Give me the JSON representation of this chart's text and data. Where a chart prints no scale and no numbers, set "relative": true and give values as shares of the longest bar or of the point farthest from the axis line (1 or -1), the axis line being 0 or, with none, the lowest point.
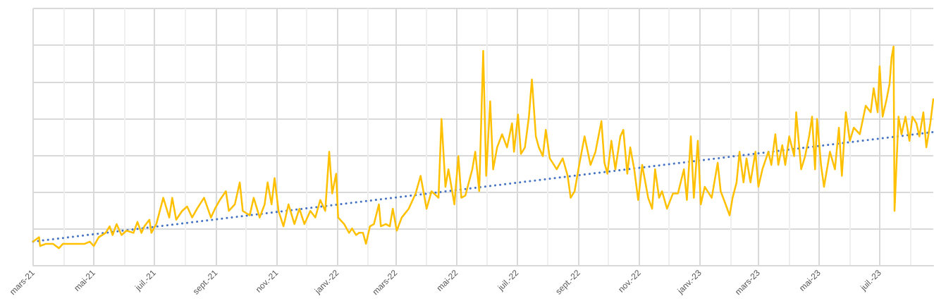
{
  "chart_data": {
    "type": "line",
    "relative": true,
    "grid": true,
    "marker": "none",
    "xlim": [
      "2021-03-01",
      "2023-08-24"
    ],
    "xticks": [
      {
        "value": "2021-03-01",
        "label": "mars-21"
      },
      {
        "value": "2021-04-01",
        "label": null
      },
      {
        "value": "2021-05-01",
        "label": "mai-21"
      },
      {
        "value": "2021-06-01",
        "label": null
      },
      {
        "value": "2021-07-01",
        "label": "juil.-21"
      },
      {
        "value": "2021-08-01",
        "label": null
      },
      {
        "value": "2021-09-01",
        "label": "sept.-21"
      },
      {
        "value": "2021-10-01",
        "label": null
      },
      {
        "value": "2021-11-01",
        "label": "nov.-21"
      },
      {
        "value": "2021-12-01",
        "label": null
      },
      {
        "value": "2022-01-01",
        "label": "janv.-22"
      },
      {
        "value": "2022-02-01",
        "label": null
      },
      {
        "value": "2022-03-01",
        "label": "mars-22"
      },
      {
        "value": "2022-04-01",
        "label": null
      },
      {
        "value": "2022-05-01",
        "label": "mai-22"
      },
      {
        "value": "2022-06-01",
        "label": null
      },
      {
        "value": "2022-07-01",
        "label": "juil.-22"
      },
      {
        "value": "2022-08-01",
        "label": null
      },
      {
        "value": "2022-09-01",
        "label": "sept.-22"
      },
      {
        "value": "2022-10-01",
        "label": null
      },
      {
        "value": "2022-11-01",
        "label": "nov.-22"
      },
      {
        "value": "2022-12-01",
        "label": null
      },
      {
        "value": "2023-01-01",
        "label": "janv.-23"
      },
      {
        "value": "2023-02-01",
        "label": null
      },
      {
        "value": "2023-03-01",
        "label": "mars-23"
      },
      {
        "value": "2023-04-01",
        "label": null
      },
      {
        "value": "2023-05-01",
        "label": "mai-23"
      },
      {
        "value": "2023-06-01",
        "label": null
      },
      {
        "value": "2023-07-01",
        "label": "juil.-23"
      },
      {
        "value": "2023-08-01",
        "label": null
      }
    ],
    "series": [
      {
        "color": "#ffc000",
        "line_style": "solid",
        "x": [
          "2021-03-01",
          "2021-03-07",
          "2021-03-08",
          "2021-03-14",
          "2021-03-21",
          "2021-03-27",
          "2021-03-31",
          "2021-04-08",
          "2021-04-15",
          "2021-04-22",
          "2021-04-27",
          "2021-05-01",
          "2021-05-06",
          "2021-05-13",
          "2021-05-17",
          "2021-05-20",
          "2021-05-24",
          "2021-05-29",
          "2021-06-03",
          "2021-06-10",
          "2021-06-14",
          "2021-06-18",
          "2021-06-21",
          "2021-06-26",
          "2021-06-28",
          "2021-07-03",
          "2021-07-10",
          "2021-07-16",
          "2021-07-19",
          "2021-07-23",
          "2021-07-29",
          "2021-08-03",
          "2021-08-08",
          "2021-08-13",
          "2021-08-20",
          "2021-08-27",
          "2021-08-31",
          "2021-09-05",
          "2021-09-11",
          "2021-09-14",
          "2021-09-20",
          "2021-09-25",
          "2021-09-28",
          "2021-10-05",
          "2021-10-09",
          "2021-10-15",
          "2021-10-20",
          "2021-10-23",
          "2021-10-27",
          "2021-10-30",
          "2021-11-03",
          "2021-11-08",
          "2021-11-13",
          "2021-11-19",
          "2021-11-24",
          "2021-11-29",
          "2021-12-05",
          "2021-12-10",
          "2021-12-15",
          "2021-12-20",
          "2021-12-24",
          "2021-12-27",
          "2021-12-31",
          "2022-01-02",
          "2022-01-08",
          "2022-01-13",
          "2022-01-16",
          "2022-01-20",
          "2022-01-23",
          "2022-01-27",
          "2022-01-30",
          "2022-02-03",
          "2022-02-07",
          "2022-02-12",
          "2022-02-14",
          "2022-02-19",
          "2022-02-23",
          "2022-02-26",
          "2022-03-02",
          "2022-03-07",
          "2022-03-14",
          "2022-03-21",
          "2022-03-26",
          "2022-04-01",
          "2022-04-06",
          "2022-04-13",
          "2022-04-16",
          "2022-04-20",
          "2022-04-23",
          "2022-04-29",
          "2022-05-03",
          "2022-05-06",
          "2022-05-10",
          "2022-05-17",
          "2022-05-20",
          "2022-05-24",
          "2022-05-28",
          "2022-05-31",
          "2022-06-04",
          "2022-06-07",
          "2022-06-11",
          "2022-06-16",
          "2022-06-21",
          "2022-06-26",
          "2022-06-28",
          "2022-07-02",
          "2022-07-05",
          "2022-07-09",
          "2022-07-13",
          "2022-07-16",
          "2022-07-20",
          "2022-07-23",
          "2022-07-27",
          "2022-07-30",
          "2022-08-03",
          "2022-08-10",
          "2022-08-16",
          "2022-08-21",
          "2022-08-24",
          "2022-08-28",
          "2022-09-02",
          "2022-09-07",
          "2022-09-13",
          "2022-09-18",
          "2022-09-24",
          "2022-09-27",
          "2022-09-30",
          "2022-10-04",
          "2022-10-08",
          "2022-10-13",
          "2022-10-16",
          "2022-10-20",
          "2022-10-23",
          "2022-10-27",
          "2022-10-31",
          "2022-11-04",
          "2022-11-10",
          "2022-11-14",
          "2022-11-17",
          "2022-11-21",
          "2022-11-24",
          "2022-11-29",
          "2022-12-05",
          "2022-12-10",
          "2022-12-16",
          "2022-12-19",
          "2022-12-23",
          "2022-12-26",
          "2022-12-30",
          "2023-01-02",
          "2023-01-06",
          "2023-01-13",
          "2023-01-19",
          "2023-01-22",
          "2023-01-27",
          "2023-01-31",
          "2023-02-03",
          "2023-02-07",
          "2023-02-10",
          "2023-02-14",
          "2023-02-17",
          "2023-02-21",
          "2023-02-26",
          "2023-03-01",
          "2023-03-05",
          "2023-03-11",
          "2023-03-14",
          "2023-03-18",
          "2023-03-21",
          "2023-03-25",
          "2023-03-28",
          "2023-04-01",
          "2023-04-06",
          "2023-04-08",
          "2023-04-13",
          "2023-04-17",
          "2023-04-21",
          "2023-04-24",
          "2023-04-27",
          "2023-04-29",
          "2023-05-03",
          "2023-05-06",
          "2023-05-12",
          "2023-05-17",
          "2023-05-21",
          "2023-05-24",
          "2023-05-28",
          "2023-06-01",
          "2023-06-05",
          "2023-06-11",
          "2023-06-17",
          "2023-06-22",
          "2023-06-25",
          "2023-06-29",
          "2023-07-01",
          "2023-07-04",
          "2023-07-08",
          "2023-07-11",
          "2023-07-13",
          "2023-07-15",
          "2023-07-16",
          "2023-07-20",
          "2023-07-23",
          "2023-07-27",
          "2023-07-31",
          "2023-08-03",
          "2023-08-07",
          "2023-08-10",
          "2023-08-14",
          "2023-08-17",
          "2023-08-21",
          "2023-08-24"
        ],
        "values": [
          0.11,
          0.13,
          0.09,
          0.1,
          0.1,
          0.08,
          0.1,
          0.1,
          0.1,
          0.1,
          0.11,
          0.09,
          0.13,
          0.15,
          0.18,
          0.14,
          0.19,
          0.14,
          0.16,
          0.15,
          0.2,
          0.15,
          0.18,
          0.21,
          0.15,
          0.19,
          0.31,
          0.22,
          0.31,
          0.21,
          0.25,
          0.27,
          0.22,
          0.26,
          0.31,
          0.22,
          0.26,
          0.3,
          0.34,
          0.25,
          0.28,
          0.38,
          0.25,
          0.23,
          0.31,
          0.22,
          0.28,
          0.38,
          0.28,
          0.4,
          0.25,
          0.18,
          0.28,
          0.19,
          0.26,
          0.19,
          0.25,
          0.22,
          0.3,
          0.25,
          0.52,
          0.33,
          0.42,
          0.22,
          0.19,
          0.15,
          0.17,
          0.14,
          0.15,
          0.15,
          0.1,
          0.18,
          0.19,
          0.28,
          0.18,
          0.19,
          0.18,
          0.26,
          0.16,
          0.22,
          0.26,
          0.33,
          0.41,
          0.26,
          0.34,
          0.31,
          0.67,
          0.36,
          0.44,
          0.28,
          0.5,
          0.31,
          0.32,
          0.44,
          0.52,
          0.34,
          0.98,
          0.41,
          0.75,
          0.44,
          0.54,
          0.6,
          0.54,
          0.65,
          0.52,
          0.69,
          0.51,
          0.54,
          0.68,
          0.85,
          0.59,
          0.54,
          0.5,
          0.62,
          0.49,
          0.44,
          0.49,
          0.41,
          0.31,
          0.34,
          0.47,
          0.59,
          0.46,
          0.52,
          0.66,
          0.47,
          0.42,
          0.57,
          0.44,
          0.59,
          0.62,
          0.42,
          0.54,
          0.44,
          0.3,
          0.46,
          0.31,
          0.26,
          0.44,
          0.31,
          0.34,
          0.26,
          0.33,
          0.33,
          0.44,
          0.3,
          0.59,
          0.31,
          0.57,
          0.28,
          0.36,
          0.31,
          0.47,
          0.34,
          0.28,
          0.23,
          0.31,
          0.38,
          0.52,
          0.38,
          0.49,
          0.38,
          0.52,
          0.36,
          0.44,
          0.52,
          0.46,
          0.6,
          0.46,
          0.55,
          0.46,
          0.59,
          0.5,
          0.7,
          0.44,
          0.5,
          0.59,
          0.68,
          0.44,
          0.67,
          0.46,
          0.36,
          0.52,
          0.44,
          0.63,
          0.41,
          0.7,
          0.57,
          0.63,
          0.6,
          0.73,
          0.7,
          0.81,
          0.7,
          0.91,
          0.68,
          0.76,
          0.83,
          0.95,
          1,
          0.25,
          0.68,
          0.6,
          0.68,
          0.57,
          0.68,
          0.65,
          0.59,
          0.7,
          0.54,
          0.65,
          0.76
        ]
      },
      {
        "type": "line",
        "color": "#4472c4",
        "line_style": "dotted",
        "x": [
          "2021-03-01",
          "2023-08-24"
        ],
        "values": [
          0.11,
          0.61
        ]
      }
    ]
  }
}
